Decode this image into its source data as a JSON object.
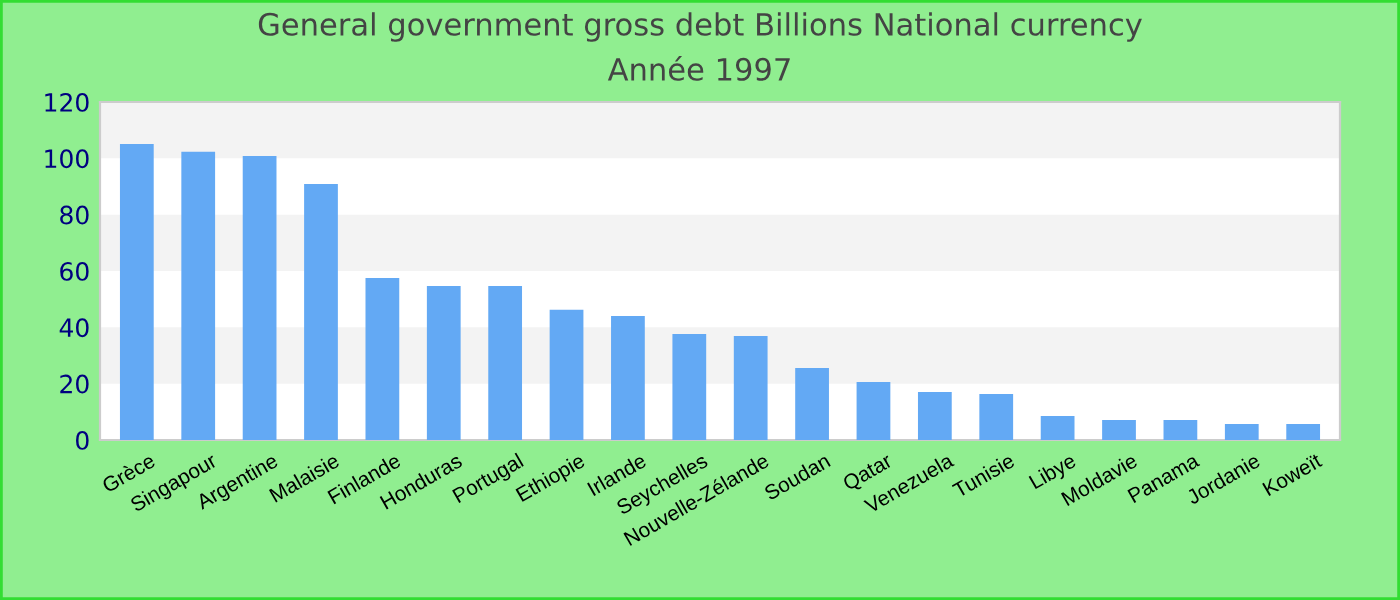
{
  "chart_data": {
    "type": "bar",
    "title": "General government gross debt Billions National currency",
    "subtitle": "Année 1997",
    "categories": [
      "Grèce",
      "Singapour",
      "Argentine",
      "Malaisie",
      "Finlande",
      "Honduras",
      "Portugal",
      "Ethiopie",
      "Irlande",
      "Seychelles",
      "Nouvelle-Zélande",
      "Soudan",
      "Qatar",
      "Venezuela",
      "Tunisie",
      "Libye",
      "Moldavie",
      "Panama",
      "Jordanie",
      "Koweït"
    ],
    "values": [
      105.1,
      102.3,
      100.8,
      90.9,
      57.5,
      54.7,
      54.7,
      46.2,
      44.0,
      37.6,
      36.9,
      25.6,
      20.6,
      17.0,
      16.3,
      8.5,
      7.1,
      7.1,
      5.7,
      5.7
    ],
    "color": "#63a9f4",
    "ylim": [
      0,
      120
    ],
    "yticks": [
      0,
      20,
      40,
      60,
      80,
      100,
      120
    ]
  }
}
